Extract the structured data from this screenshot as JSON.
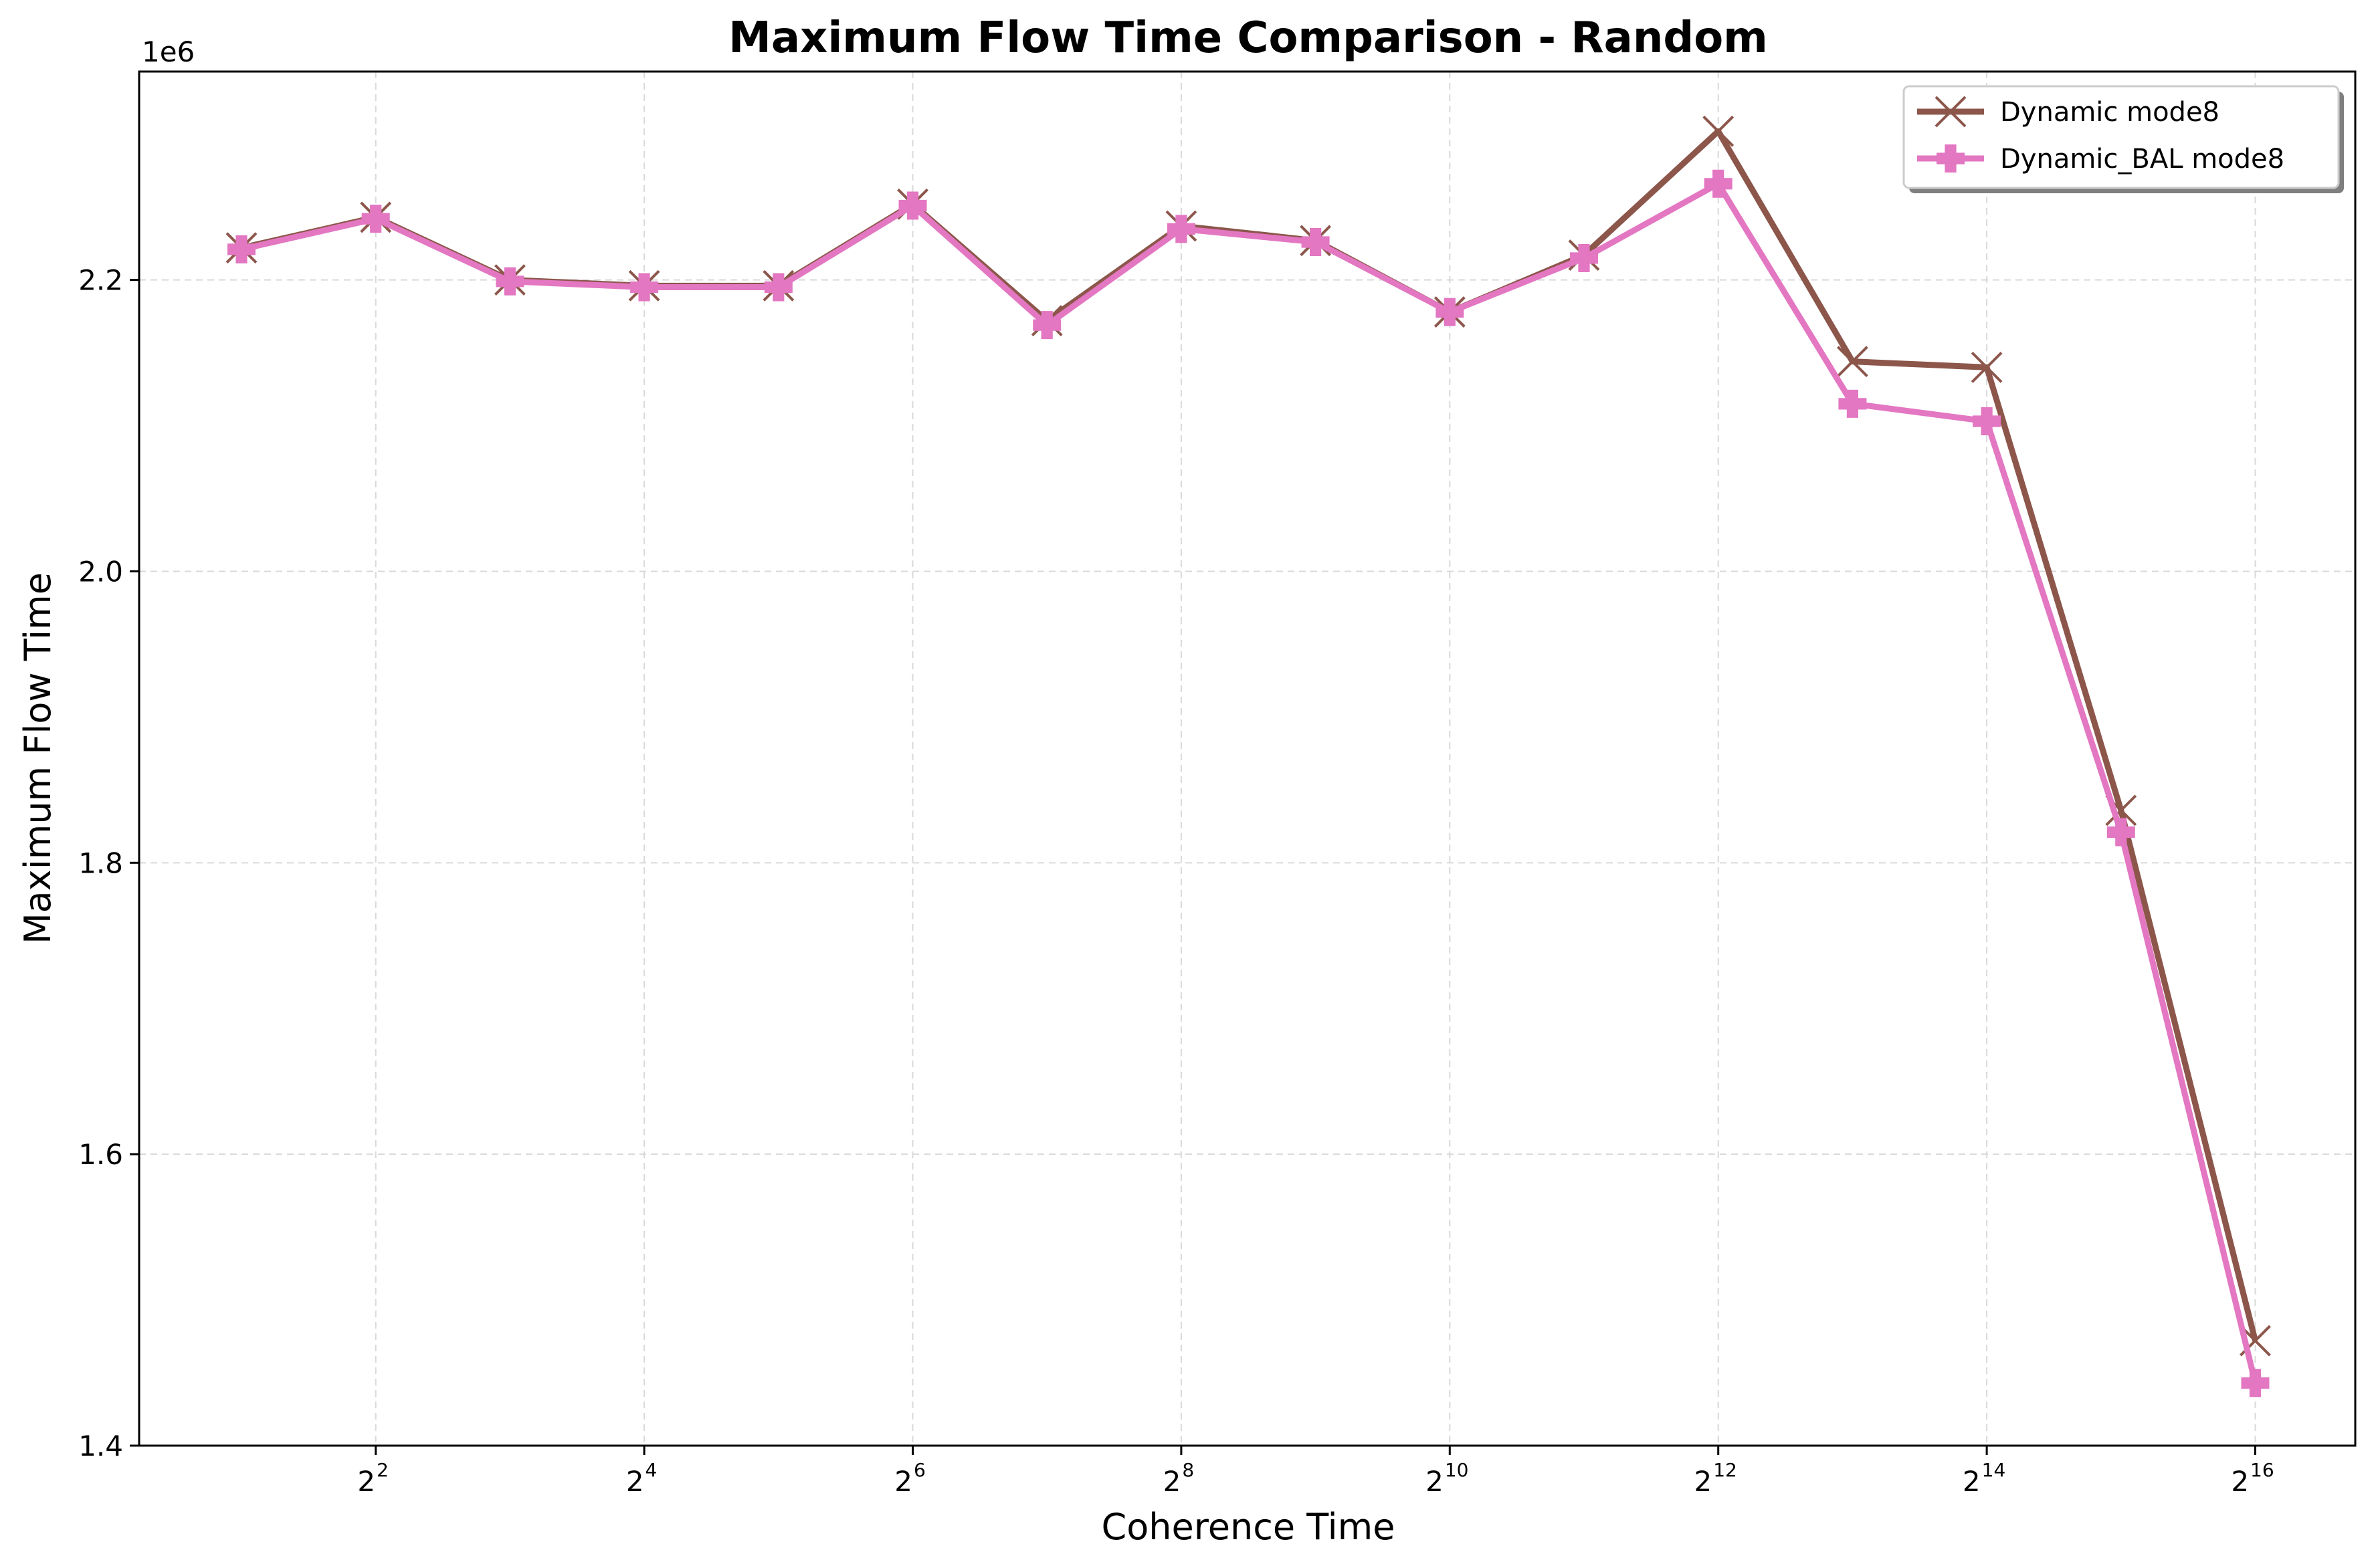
{
  "chart_data": {
    "type": "line",
    "title": "Maximum Flow Time Comparison - Random",
    "xlabel": "Coherence Time",
    "ylabel": "Maximum Flow Time",
    "y_offset_label": "1e6",
    "x_scale": "log2",
    "x": [
      2,
      4,
      8,
      16,
      32,
      64,
      128,
      256,
      512,
      1024,
      2048,
      4096,
      8192,
      16384,
      32768,
      65536
    ],
    "x_ticks": [
      {
        "base": "2",
        "exp": "2",
        "value": 4
      },
      {
        "base": "2",
        "exp": "4",
        "value": 16
      },
      {
        "base": "2",
        "exp": "6",
        "value": 64
      },
      {
        "base": "2",
        "exp": "8",
        "value": 256
      },
      {
        "base": "2",
        "exp": "10",
        "value": 1024
      },
      {
        "base": "2",
        "exp": "12",
        "value": 4096
      },
      {
        "base": "2",
        "exp": "14",
        "value": 16384
      },
      {
        "base": "2",
        "exp": "16",
        "value": 65536
      }
    ],
    "y_ticks": [
      {
        "label": "1.4",
        "value": 1.4
      },
      {
        "label": "1.6",
        "value": 1.6
      },
      {
        "label": "1.8",
        "value": 1.8
      },
      {
        "label": "2.0",
        "value": 2.0
      },
      {
        "label": "2.2",
        "value": 2.2
      }
    ],
    "ylim": [
      1.4,
      2.343
    ],
    "grid": true,
    "legend_position": "top-right",
    "series": [
      {
        "name": "Dynamic mode8",
        "color": "#8c564b",
        "marker": "x",
        "values": [
          2.222,
          2.243,
          2.2,
          2.196,
          2.196,
          2.252,
          2.172,
          2.237,
          2.227,
          2.178,
          2.217,
          2.302,
          2.144,
          2.14,
          1.836,
          1.472
        ]
      },
      {
        "name": "Dynamic_BAL mode8",
        "color": "#e377c2",
        "marker": "plus-filled",
        "values": [
          2.221,
          2.242,
          2.199,
          2.195,
          2.195,
          2.251,
          2.169,
          2.235,
          2.226,
          2.178,
          2.215,
          2.266,
          2.115,
          2.103,
          1.821,
          1.443
        ]
      }
    ]
  }
}
